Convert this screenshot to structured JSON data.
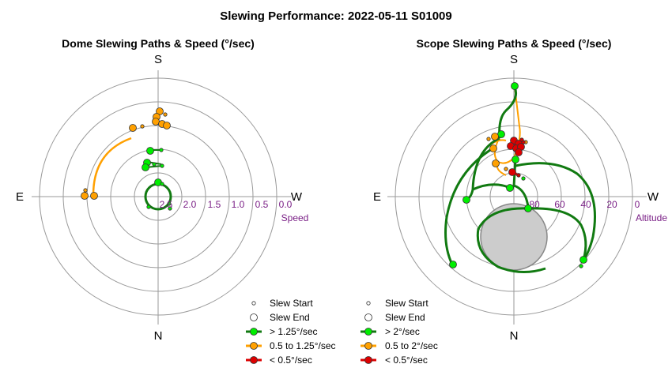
{
  "figure_title": "Slewing Performance: 2022-05-11 S01009",
  "colors": {
    "fast": "#00ee00",
    "fast_line": "#117a11",
    "medium": "#ffa000",
    "slow": "#dd0000",
    "ring": "#9a9a9a",
    "tick_text": "#7a1f86",
    "exclusion": "#cccccc"
  },
  "chart_data": [
    {
      "type": "polar-scatter",
      "title": "Dome Slewing Paths & Speed (°/sec)",
      "directions": {
        "north": "N",
        "south": "S",
        "east": "E",
        "west": "W"
      },
      "radial_axis": {
        "label": "Speed",
        "ticks": [
          "2.0",
          "1.5",
          "1.0",
          "0.5",
          "0.0"
        ],
        "overlap_tick": "2.5"
      },
      "legend": {
        "start": "Slew Start",
        "end": "Slew End",
        "fast": "> 1.25°/sec",
        "medium": "0.5 to 1.25°/sec",
        "slow": "< 0.5°/sec"
      }
    },
    {
      "type": "polar-scatter",
      "title": "Scope Slewing Paths & Speed (°/sec)",
      "directions": {
        "north": "N",
        "south": "S",
        "east": "E",
        "west": "W"
      },
      "radial_axis": {
        "label": "Altitude",
        "ticks": [
          "80",
          "60",
          "40",
          "20",
          "0"
        ]
      },
      "legend": {
        "start": "Slew Start",
        "end": "Slew End",
        "fast": "> 2°/sec",
        "medium": "0.5 to 2°/sec",
        "slow": "< 0.5°/sec"
      }
    }
  ]
}
